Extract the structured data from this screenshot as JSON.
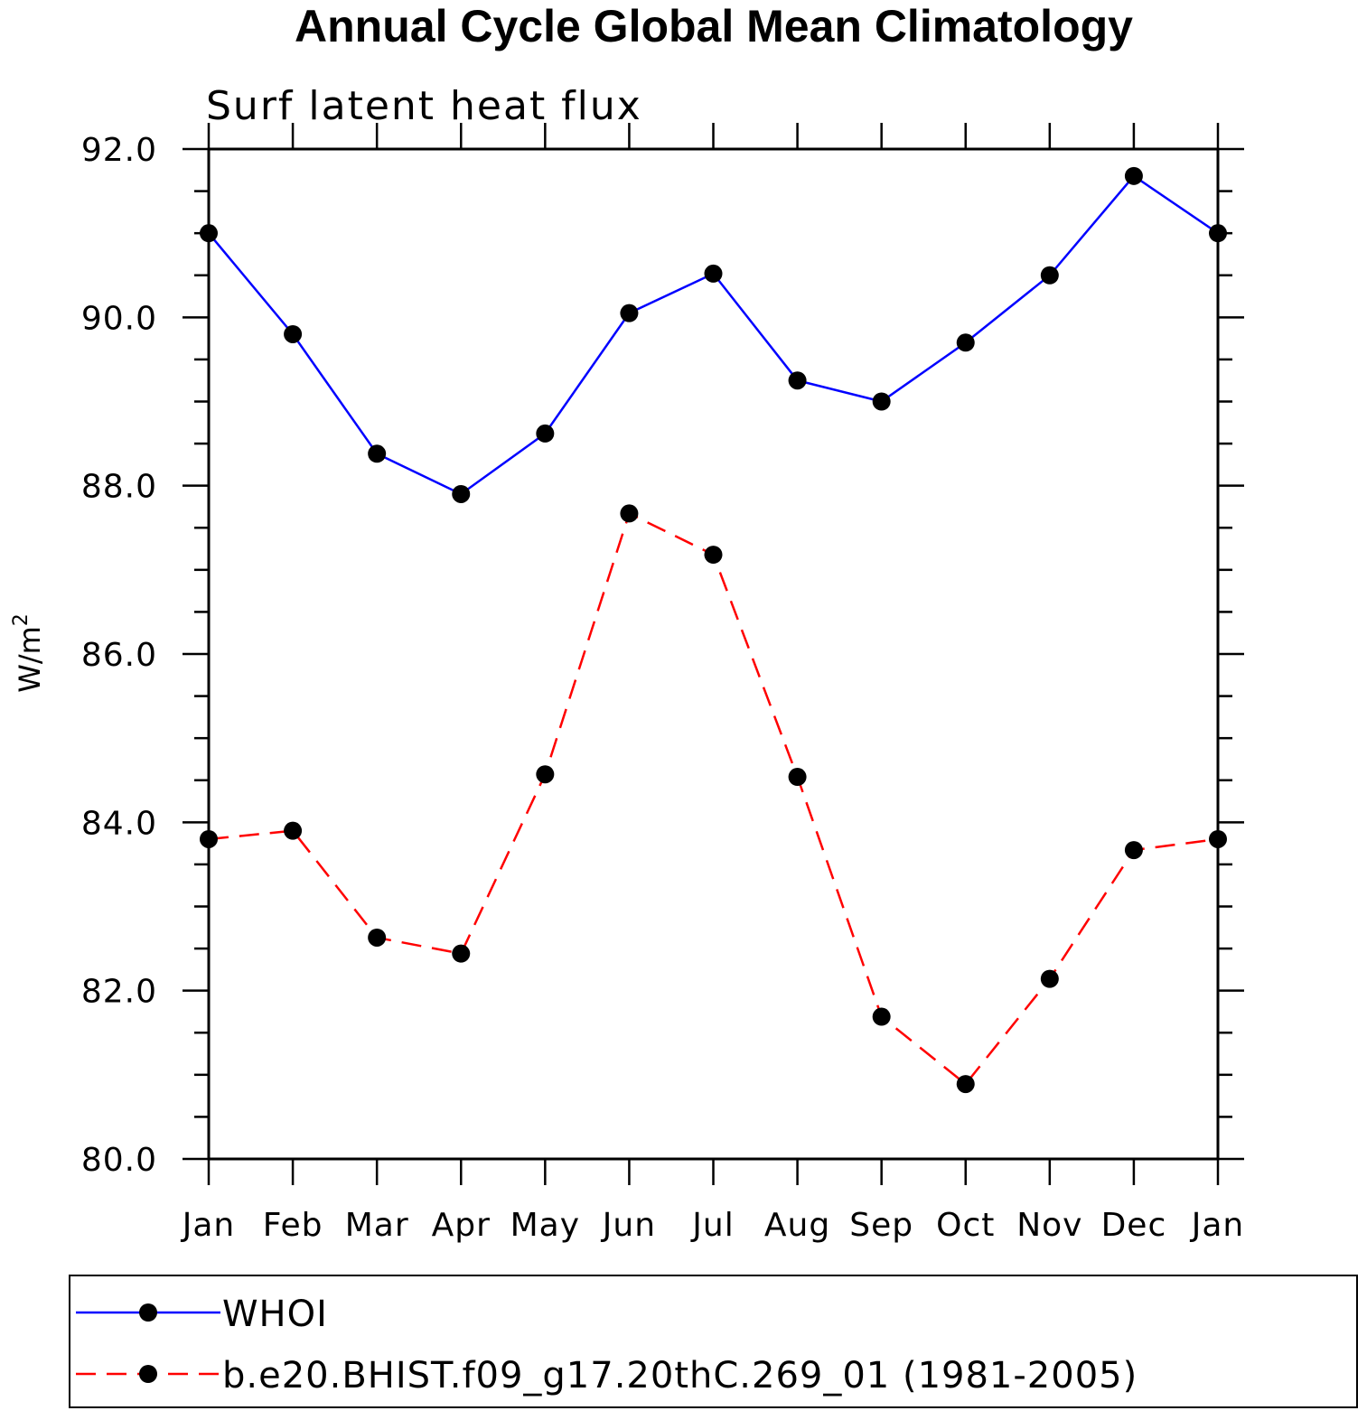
{
  "chart_data": {
    "type": "line",
    "title": "Annual Cycle Global Mean Climatology",
    "subtitle": "Surf latent heat flux",
    "xlabel": "",
    "ylabel_base": "W/m",
    "ylabel_sup": "2",
    "categories": [
      "Jan",
      "Feb",
      "Mar",
      "Apr",
      "May",
      "Jun",
      "Jul",
      "Aug",
      "Sep",
      "Oct",
      "Nov",
      "Dec",
      "Jan"
    ],
    "ylim": [
      80.0,
      92.0
    ],
    "yticks": [
      "80.0",
      "82.0",
      "84.0",
      "86.0",
      "88.0",
      "90.0",
      "92.0"
    ],
    "ytick_values": [
      80,
      82,
      84,
      86,
      88,
      90,
      92
    ],
    "grid": false,
    "legend_position": "bottom",
    "series": [
      {
        "name": "WHOI",
        "color": "#0000ff",
        "line_style": "solid",
        "marker": "filled-circle",
        "values": [
          91.0,
          89.8,
          88.38,
          87.9,
          88.62,
          90.05,
          90.52,
          89.25,
          89.0,
          89.7,
          90.5,
          91.68,
          91.0
        ]
      },
      {
        "name": "b.e20.BHIST.f09_g17.20thC.269_01 (1981-2005)",
        "color": "#ff0000",
        "line_style": "dashed",
        "marker": "filled-circle",
        "values": [
          83.8,
          83.9,
          82.63,
          82.44,
          84.57,
          87.67,
          87.18,
          84.54,
          81.69,
          80.89,
          82.14,
          83.67,
          83.8
        ]
      }
    ]
  }
}
